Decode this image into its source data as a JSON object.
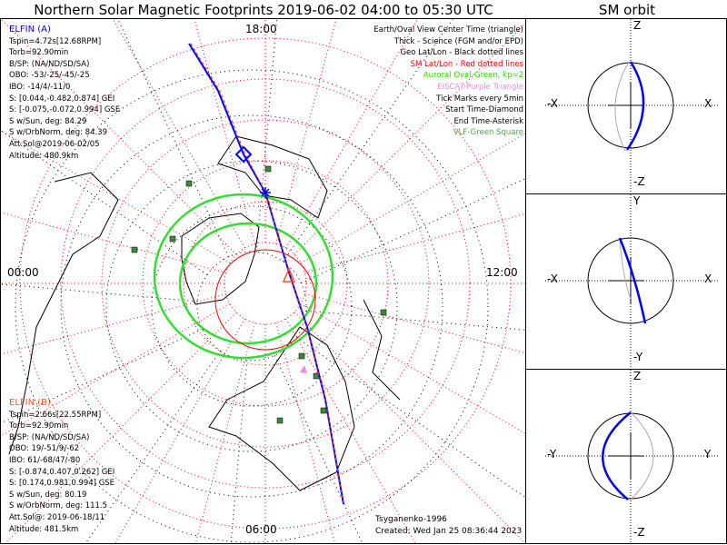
{
  "title": "Northern Solar Magnetic Footprints 2019-06-02 04:00 to 05:30 UTC",
  "orbit_title": "SM orbit",
  "elfin_a": {
    "name": "ELFIN (A)",
    "color": "#0000ff",
    "lines": [
      "Tspin=4.72s[12.68RPM]",
      "Torb=92.90min",
      "B/SP: (NA/ND/SD/SA)",
      "OBO: -53/-25/-45/-25",
      "IBO: -14/4/-11/0",
      "S: [0.044,-0.482,0.874] GEI",
      "S: [-0.075,-0.072,0.994] GSE",
      "S w/Sun, deg: 84.29",
      "S w/OrbNorm, deg: 84.39",
      "Att.Sol@2019-06-02/05",
      "Altitude: 480.9km"
    ]
  },
  "elfin_b": {
    "name": "ELFIN (B)",
    "color": "#ff5533",
    "lines": [
      "Tspin=2.66s[22.55RPM]",
      "Torb=92.90min",
      "B/SP: (NA/ND/SD/SA)",
      "OBO: 19/-51/9/-62",
      "IBO: 61/-68/47/-80",
      "S: [-0.874,0.407,0.262] GEI",
      "S: [0.174,0.981,0.994] GSE",
      "S w/Sun, deg: 80.19",
      "S w/OrbNorm, deg: 111.5",
      "Att.Sol@: 2019-06-18/11",
      "Altitude: 481.5km"
    ]
  },
  "legend": [
    {
      "text": "Earth/Oval View Center Time (triangle)",
      "color": "#000000"
    },
    {
      "text": "Thick - Science (FGM and/or EPD)",
      "color": "#000000"
    },
    {
      "text": "Geo Lat/Lon - Black dotted lines",
      "color": "#000000"
    },
    {
      "text": "SM Lat/Lon - Red dotted lines",
      "color": "#ff0000"
    },
    {
      "text": "Auroral Oval-Green, kp=2",
      "color": "#33dd00"
    },
    {
      "text": "EISCAT-Purple Triangle",
      "color": "#ee88ee"
    },
    {
      "text": "Tick Marks every 5min",
      "color": "#000000"
    },
    {
      "text": "Start Time-Diamond",
      "color": "#000000"
    },
    {
      "text": "End Time-Asterisk",
      "color": "#000000"
    },
    {
      "text": "VLF-Green Square",
      "color": "#44aa44"
    }
  ],
  "mlt_labels": {
    "top": "18:00",
    "left": "00:00",
    "right": "12:00",
    "bottom": "06:00"
  },
  "credits": {
    "model": "Tsyganenko-1996",
    "created": "Created: Wed Jan 25 08:36:44 2023"
  },
  "orbit_panels": [
    {
      "top": "Z",
      "bottom": "-Z",
      "left": "-X",
      "right": "X"
    },
    {
      "top": "Y",
      "bottom": "-Y",
      "left": "-X",
      "right": "X"
    },
    {
      "top": "Z",
      "bottom": "-Z",
      "left": "-Y",
      "right": "Y"
    }
  ]
}
